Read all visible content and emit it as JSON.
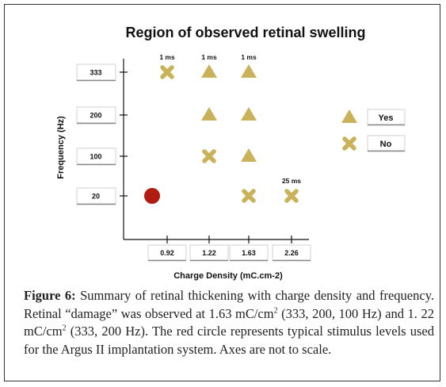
{
  "chart_data": {
    "type": "scatter",
    "title": "Region of observed retinal swelling",
    "xlabel": "Charge Density (mC.cm-2)",
    "ylabel": "Frequency (Hz)",
    "x_categories": [
      "0.92",
      "1.22",
      "1.63",
      "2.26"
    ],
    "y_categories": [
      "20",
      "100",
      "200",
      "333"
    ],
    "legend": {
      "position": "right",
      "entries": [
        {
          "label": "Yes",
          "marker": "triangle",
          "color": "#c9b25a"
        },
        {
          "label": "No",
          "marker": "cross",
          "color": "#c9b25a"
        }
      ]
    },
    "points": [
      {
        "x": "0.92",
        "y": "333",
        "marker": "cross"
      },
      {
        "x": "1.22",
        "y": "333",
        "marker": "triangle"
      },
      {
        "x": "1.63",
        "y": "333",
        "marker": "triangle"
      },
      {
        "x": "1.22",
        "y": "200",
        "marker": "triangle"
      },
      {
        "x": "1.63",
        "y": "200",
        "marker": "triangle"
      },
      {
        "x": "1.22",
        "y": "100",
        "marker": "cross"
      },
      {
        "x": "1.63",
        "y": "100",
        "marker": "triangle"
      },
      {
        "x": "1.63",
        "y": "20",
        "marker": "cross"
      },
      {
        "x": "2.26",
        "y": "20",
        "marker": "cross"
      },
      {
        "x": "0.92",
        "y": "20",
        "marker": "circle",
        "color": "#b01c10"
      }
    ],
    "annotations": [
      {
        "text": "1 ms",
        "x": "0.92",
        "y": "333"
      },
      {
        "text": "1 ms",
        "x": "1.22",
        "y": "333"
      },
      {
        "text": "1 ms",
        "x": "1.63",
        "y": "333"
      },
      {
        "text": "25 ms",
        "x": "2.26",
        "y": "20"
      }
    ],
    "marker_color": "#c9b25a",
    "grid": false
  },
  "caption": {
    "label": "Figure 6:",
    "p1": " Summary of retinal thickening with charge density and frequency. Retinal “damage” was observed at 1.63 mC/cm",
    "sup1": "2",
    "p2": " (333, 200, 100 Hz) and 1. 22 mC/cm",
    "sup2": "2",
    "p3": " (333, 200 Hz). The red circle represents typical stimulus levels used for the Argus II implantation system. Axes are not to scale."
  }
}
